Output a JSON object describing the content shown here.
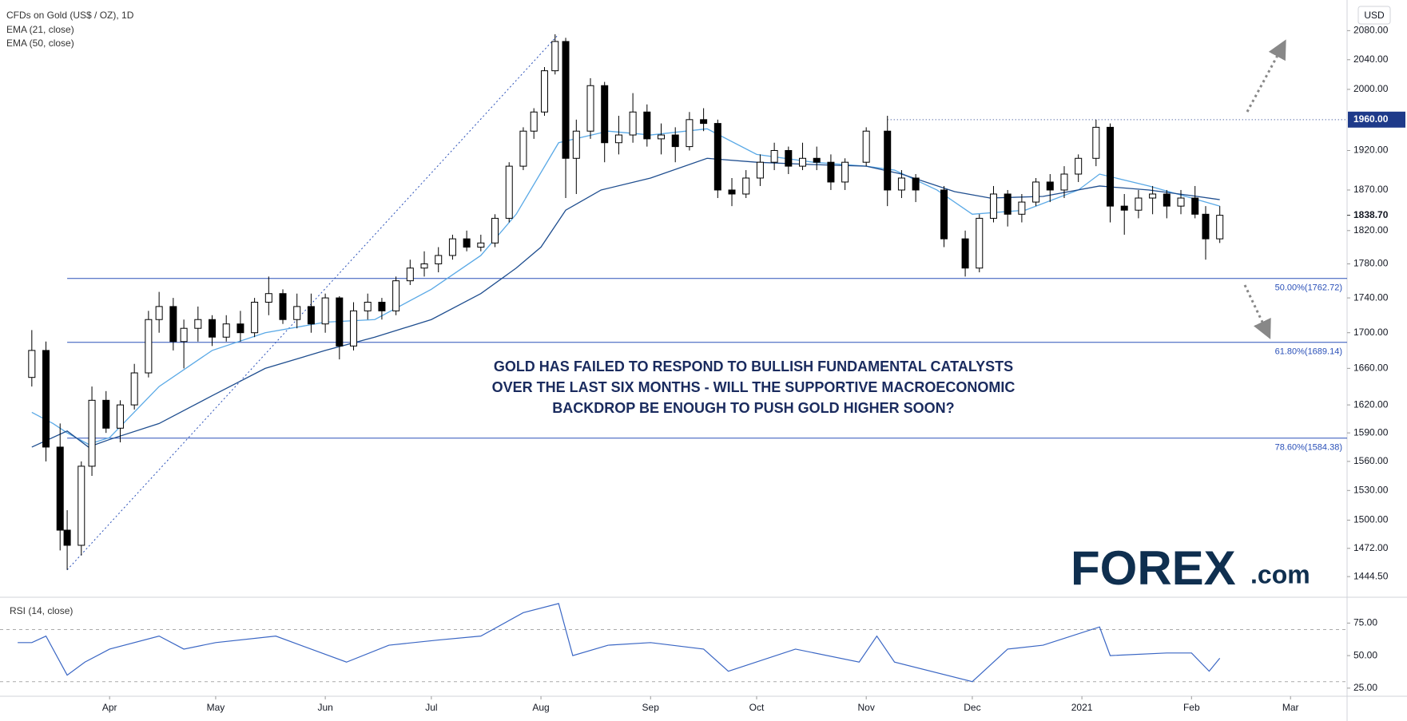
{
  "currency": "USD",
  "logo": "FOREX",
  "logo_suffix": ".com",
  "chart_data": [
    {
      "type": "candlestick",
      "title": "CFDs on Gold (US$ / OZ), 1D",
      "log": true,
      "grid": false,
      "annotation": [
        "GOLD HAS FAILED TO RESPOND TO BULLISH FUNDAMENTAL CATALYSTS",
        "OVER THE LAST SIX MONTHS - WILL THE SUPPORTIVE MACROECONOMIC",
        "BACKDROP BE ENOUGH TO PUSH GOLD HIGHER SOON?"
      ],
      "xlim": [
        0,
        381
      ],
      "ylim": [
        1427,
        2123
      ],
      "xticks": [
        {
          "value": 31,
          "label": "Apr"
        },
        {
          "value": 61,
          "label": "May"
        },
        {
          "value": 92,
          "label": "Jun"
        },
        {
          "value": 122,
          "label": "Jul"
        },
        {
          "value": 153,
          "label": "Aug"
        },
        {
          "value": 184,
          "label": "Sep"
        },
        {
          "value": 214,
          "label": "Oct"
        },
        {
          "value": 245,
          "label": "Nov"
        },
        {
          "value": 275,
          "label": "Dec"
        },
        {
          "value": 306,
          "label": "2021"
        },
        {
          "value": 337,
          "label": "Feb"
        },
        {
          "value": 365,
          "label": "Mar"
        }
      ],
      "yticks": [
        {
          "value": 2080,
          "label": "2080.00"
        },
        {
          "value": 2040,
          "label": "2040.00"
        },
        {
          "value": 2000,
          "label": "2000.00"
        },
        {
          "value": 1920,
          "label": "1920.00"
        },
        {
          "value": 1870,
          "label": "1870.00"
        },
        {
          "value": 1820,
          "label": "1820.00"
        },
        {
          "value": 1780,
          "label": "1780.00"
        },
        {
          "value": 1740,
          "label": "1740.00"
        },
        {
          "value": 1700,
          "label": "1700.00"
        },
        {
          "value": 1660,
          "label": "1660.00"
        },
        {
          "value": 1620,
          "label": "1620.00"
        },
        {
          "value": 1590,
          "label": "1590.00"
        },
        {
          "value": 1560,
          "label": "1560.00"
        },
        {
          "value": 1530,
          "label": "1530.00"
        },
        {
          "value": 1500,
          "label": "1500.00"
        },
        {
          "value": 1472,
          "label": "1472.00"
        },
        {
          "value": 1444.5,
          "label": "1444.50"
        }
      ],
      "price_line": {
        "value": 1960,
        "label": "1960.00",
        "color": "#1e3a8a"
      },
      "last_price": {
        "value": 1838.7,
        "label": "1838.70"
      },
      "fib_levels": [
        {
          "value": 1762.72,
          "label": "50.00%(1762.72)"
        },
        {
          "value": 1689.14,
          "label": "61.80%(1689.14)"
        },
        {
          "value": 1584.38,
          "label": "78.60%(1584.38)"
        }
      ],
      "fib_color": "#2a50b8",
      "trendline": {
        "x": [
          19,
          158
        ],
        "values": [
          1451,
          2075
        ]
      },
      "x": [
        9,
        13,
        17,
        19,
        23,
        26,
        30,
        34,
        38,
        42,
        45,
        49,
        52,
        56,
        60,
        64,
        68,
        72,
        76,
        80,
        84,
        88,
        92,
        96,
        100,
        104,
        108,
        112,
        116,
        120,
        124,
        128,
        132,
        136,
        140,
        144,
        148,
        151,
        154,
        157,
        160,
        163,
        167,
        171,
        175,
        179,
        183,
        187,
        191,
        195,
        199,
        203,
        207,
        211,
        215,
        219,
        223,
        227,
        231,
        235,
        239,
        245,
        251,
        255,
        259,
        267,
        273,
        277,
        281,
        285,
        289,
        293,
        297,
        301,
        305,
        310,
        314,
        318,
        322,
        326,
        330,
        334,
        338,
        341,
        345
      ],
      "open": [
        1650,
        1680,
        1575,
        1490,
        1475,
        1555,
        1625,
        1595,
        1620,
        1655,
        1715,
        1730,
        1690,
        1705,
        1715,
        1695,
        1710,
        1700,
        1735,
        1745,
        1715,
        1730,
        1710,
        1740,
        1685,
        1725,
        1735,
        1725,
        1760,
        1775,
        1780,
        1790,
        1810,
        1800,
        1805,
        1835,
        1900,
        1945,
        1970,
        2025,
        2065,
        1910,
        1945,
        2005,
        1930,
        1940,
        1970,
        1935,
        1940,
        1925,
        1960,
        1955,
        1870,
        1865,
        1885,
        1905,
        1920,
        1900,
        1910,
        1905,
        1880,
        1905,
        1945,
        1870,
        1885,
        1870,
        1810,
        1775,
        1835,
        1865,
        1840,
        1855,
        1880,
        1870,
        1890,
        1910,
        1950,
        1850,
        1845,
        1860,
        1865,
        1850,
        1860,
        1840,
        1810
      ],
      "high": [
        1703,
        1690,
        1600,
        1510,
        1560,
        1640,
        1635,
        1625,
        1665,
        1725,
        1747,
        1740,
        1715,
        1730,
        1720,
        1720,
        1725,
        1740,
        1765,
        1750,
        1745,
        1745,
        1745,
        1742,
        1735,
        1745,
        1740,
        1765,
        1785,
        1795,
        1800,
        1815,
        1820,
        1815,
        1840,
        1905,
        1950,
        1975,
        2030,
        2075,
        2070,
        1960,
        2015,
        2010,
        1965,
        1995,
        1980,
        1955,
        1950,
        1970,
        1975,
        1960,
        1885,
        1895,
        1915,
        1930,
        1925,
        1930,
        1925,
        1915,
        1910,
        1950,
        1965,
        1895,
        1890,
        1875,
        1820,
        1840,
        1875,
        1870,
        1865,
        1885,
        1890,
        1900,
        1915,
        1960,
        1955,
        1865,
        1870,
        1875,
        1870,
        1870,
        1875,
        1850,
        1850
      ],
      "low": [
        1640,
        1560,
        1470,
        1451,
        1465,
        1545,
        1590,
        1580,
        1615,
        1650,
        1700,
        1680,
        1660,
        1690,
        1685,
        1690,
        1690,
        1695,
        1720,
        1710,
        1705,
        1700,
        1700,
        1670,
        1680,
        1715,
        1715,
        1720,
        1755,
        1765,
        1770,
        1785,
        1795,
        1795,
        1800,
        1830,
        1895,
        1935,
        1965,
        2020,
        1860,
        1865,
        1935,
        1905,
        1915,
        1930,
        1925,
        1915,
        1905,
        1920,
        1945,
        1860,
        1850,
        1860,
        1875,
        1895,
        1890,
        1895,
        1895,
        1870,
        1870,
        1900,
        1850,
        1860,
        1855,
        1800,
        1765,
        1770,
        1830,
        1825,
        1830,
        1850,
        1855,
        1860,
        1880,
        1900,
        1830,
        1815,
        1835,
        1840,
        1835,
        1840,
        1835,
        1785,
        1805
      ],
      "close": [
        1680,
        1575,
        1490,
        1475,
        1555,
        1625,
        1595,
        1620,
        1655,
        1715,
        1730,
        1690,
        1705,
        1715,
        1695,
        1710,
        1700,
        1735,
        1745,
        1715,
        1730,
        1710,
        1740,
        1685,
        1725,
        1735,
        1725,
        1760,
        1775,
        1780,
        1790,
        1810,
        1800,
        1805,
        1835,
        1900,
        1945,
        1970,
        2025,
        2065,
        1910,
        1945,
        2005,
        1930,
        1940,
        1970,
        1935,
        1940,
        1925,
        1960,
        1955,
        1870,
        1865,
        1885,
        1905,
        1920,
        1900,
        1910,
        1905,
        1880,
        1905,
        1945,
        1870,
        1885,
        1870,
        1810,
        1775,
        1835,
        1865,
        1840,
        1855,
        1880,
        1870,
        1890,
        1910,
        1950,
        1850,
        1845,
        1860,
        1865,
        1850,
        1860,
        1840,
        1810,
        1838.7
      ],
      "up_color": "#ffffff",
      "down_color": "#000000",
      "series": [
        {
          "name": "EMA (21, close)",
          "color": "#5aa9e6",
          "x": [
            9,
            15,
            19,
            25,
            31,
            45,
            60,
            75,
            92,
            106,
            122,
            136,
            146,
            158,
            172,
            184,
            200,
            214,
            230,
            245,
            253,
            265,
            275,
            290,
            305,
            311,
            325,
            337,
            345
          ],
          "values": [
            1612,
            1600,
            1590,
            1578,
            1585,
            1640,
            1680,
            1700,
            1712,
            1715,
            1750,
            1790,
            1840,
            1930,
            1945,
            1940,
            1948,
            1915,
            1905,
            1900,
            1895,
            1870,
            1840,
            1845,
            1870,
            1890,
            1875,
            1860,
            1850
          ]
        },
        {
          "name": "EMA (50, close)",
          "color": "#1f4e8f",
          "x": [
            9,
            19,
            25,
            31,
            45,
            60,
            75,
            92,
            106,
            122,
            136,
            146,
            153,
            160,
            170,
            184,
            200,
            214,
            230,
            245,
            255,
            270,
            280,
            295,
            311,
            325,
            337,
            345
          ],
          "values": [
            1575,
            1592,
            1575,
            1583,
            1600,
            1630,
            1660,
            1680,
            1695,
            1715,
            1745,
            1775,
            1800,
            1845,
            1870,
            1885,
            1910,
            1905,
            1902,
            1900,
            1890,
            1868,
            1860,
            1862,
            1875,
            1870,
            1863,
            1858
          ]
        }
      ]
    },
    {
      "type": "line",
      "title": "RSI (14, close)",
      "xlim": [
        0,
        381
      ],
      "ylim": [
        20,
        93
      ],
      "yticks": [
        {
          "value": 75,
          "label": "75.00"
        },
        {
          "value": 50,
          "label": "50.00"
        },
        {
          "value": 25,
          "label": "25.00"
        }
      ],
      "levels": [
        70,
        30
      ],
      "series": [
        {
          "name": "RSI",
          "color": "#3a66c4",
          "x": [
            5,
            9,
            13,
            19,
            24,
            31,
            45,
            52,
            61,
            78,
            98,
            110,
            124,
            136,
            148,
            158,
            162,
            172,
            184,
            199,
            206,
            225,
            243,
            248,
            253,
            275,
            285,
            295,
            311,
            314,
            330,
            337,
            342,
            345
          ],
          "values": [
            60,
            60,
            65,
            35,
            45,
            55,
            65,
            55,
            60,
            65,
            45,
            58,
            62,
            65,
            83,
            90,
            50,
            58,
            60,
            55,
            38,
            55,
            45,
            65,
            45,
            30,
            55,
            58,
            72,
            50,
            52,
            52,
            38,
            48
          ]
        }
      ]
    }
  ]
}
